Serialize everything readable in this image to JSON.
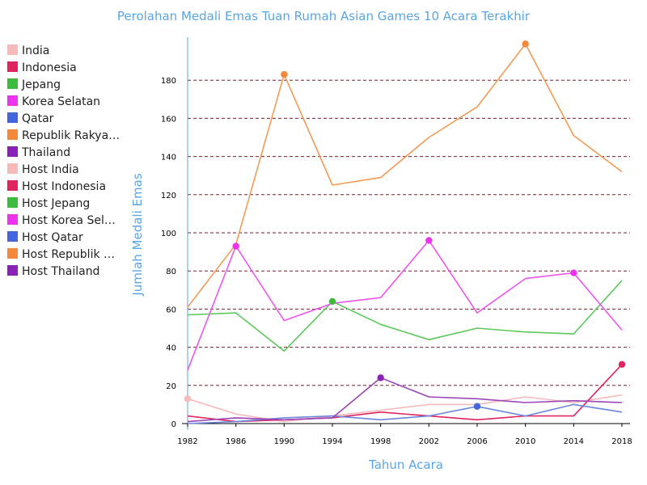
{
  "chart_data": {
    "type": "line",
    "title": "Perolahan Medali Emas Tuan Rumah Asian Games 10 Acara Terakhir",
    "xlabel": "Tahun Acara",
    "ylabel": "Jumlah Medali Emas",
    "x": [
      1982,
      1986,
      1990,
      1994,
      1998,
      2002,
      2006,
      2010,
      2014,
      2018
    ],
    "ylim": [
      0,
      200
    ],
    "yticks": [
      0,
      20,
      40,
      60,
      80,
      100,
      120,
      140,
      160,
      180
    ],
    "grid": "horizontal dashed",
    "series": [
      {
        "name": "India",
        "color": "#f7b9b9",
        "values": [
          13,
          5,
          1,
          4,
          7,
          10,
          10,
          14,
          11,
          15
        ]
      },
      {
        "name": "Indonesia",
        "color": "#e0245e",
        "values": [
          4,
          1,
          2,
          3,
          6,
          4,
          2,
          4,
          4,
          31
        ]
      },
      {
        "name": "Jepang",
        "color": "#5cc85c",
        "values": [
          57,
          58,
          38,
          64,
          52,
          44,
          50,
          48,
          47,
          75
        ]
      },
      {
        "name": "Korea Selatan",
        "color": "#ee55ee",
        "values": [
          28,
          93,
          54,
          63,
          66,
          96,
          58,
          76,
          79,
          49
        ]
      },
      {
        "name": "Qatar",
        "color": "#6a87dc",
        "values": [
          0,
          1,
          3,
          4,
          2,
          4,
          9,
          4,
          10,
          6
        ]
      },
      {
        "name": "Republik Rakyat Tiongkok",
        "color": "#f59a55",
        "values": [
          61,
          94,
          183,
          125,
          129,
          150,
          166,
          199,
          151,
          132
        ]
      },
      {
        "name": "Thailand",
        "color": "#9b45b8",
        "values": [
          1,
          3,
          2,
          3,
          24,
          14,
          13,
          11,
          12,
          11
        ]
      }
    ],
    "host_markers": [
      {
        "name": "Host India",
        "color": "#f7b9b9",
        "x": 1982,
        "y": 13
      },
      {
        "name": "Host Indonesia",
        "color": "#e0245e",
        "x": 2018,
        "y": 31
      },
      {
        "name": "Host Jepang",
        "color": "#3dbb3d",
        "x": 1994,
        "y": 64
      },
      {
        "name": "Host Korea Selatan",
        "color": "#ee33ee",
        "x": [
          1986,
          2002,
          2014
        ],
        "y": [
          93,
          96,
          79
        ]
      },
      {
        "name": "Host Qatar",
        "color": "#4466dd",
        "x": 2006,
        "y": 9
      },
      {
        "name": "Host Republik Rakyat Tiongkok",
        "color": "#f5883a",
        "x": [
          1990,
          2010
        ],
        "y": [
          183,
          199
        ]
      },
      {
        "name": "Host Thailand",
        "color": "#8a22b8",
        "x": 1998,
        "y": 24
      }
    ],
    "legend": {
      "placement": "left",
      "entries": [
        {
          "label": "India",
          "color": "#f7b9b9"
        },
        {
          "label": "Indonesia",
          "color": "#e0245e"
        },
        {
          "label": "Jepang",
          "color": "#3dbb3d"
        },
        {
          "label": "Korea Selatan",
          "color": "#ee33ee"
        },
        {
          "label": "Qatar",
          "color": "#4466dd"
        },
        {
          "label": "Republik Rakya…",
          "color": "#f5883a"
        },
        {
          "label": "Thailand",
          "color": "#8a22b8"
        },
        {
          "label": "Host India",
          "color": "#f7b9b9"
        },
        {
          "label": "Host Indonesia",
          "color": "#e0245e"
        },
        {
          "label": "Host Jepang",
          "color": "#3dbb3d"
        },
        {
          "label": "Host Korea Sel…",
          "color": "#ee33ee"
        },
        {
          "label": "Host Qatar",
          "color": "#4466dd"
        },
        {
          "label": "Host Republik …",
          "color": "#f5883a"
        },
        {
          "label": "Host Thailand",
          "color": "#8a22b8"
        }
      ]
    }
  }
}
